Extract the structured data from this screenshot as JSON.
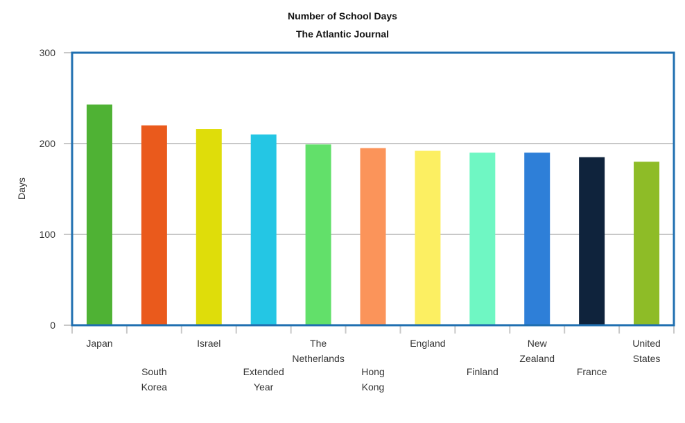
{
  "chart_data": {
    "type": "bar",
    "title": "Number of School Days",
    "subtitle": "The Atlantic Journal",
    "xlabel": "",
    "ylabel": "Days",
    "ylim": [
      0,
      300
    ],
    "yticks": [
      0,
      100,
      200,
      300
    ],
    "grid": true,
    "legend": "none",
    "categories": [
      "Japan",
      "South Korea",
      "Israel",
      "Extended Year",
      "The Netherlands",
      "Hong Kong",
      "England",
      "Finland",
      "New Zealand",
      "France",
      "United States"
    ],
    "category_label_lines": [
      [
        "Japan"
      ],
      [
        "South",
        "Korea"
      ],
      [
        "Israel"
      ],
      [
        "Extended",
        "Year"
      ],
      [
        "The",
        "Netherlands"
      ],
      [
        "Hong",
        "Kong"
      ],
      [
        "England"
      ],
      [
        "Finland"
      ],
      [
        "New",
        "Zealand"
      ],
      [
        "France"
      ],
      [
        "United",
        "States"
      ]
    ],
    "label_row": [
      0,
      1,
      0,
      1,
      0,
      1,
      0,
      1,
      0,
      1,
      0
    ],
    "values": [
      243,
      220,
      216,
      210,
      199,
      195,
      192,
      190,
      190,
      185,
      180
    ],
    "colors": [
      "#4fb234",
      "#ea5a1c",
      "#dfdd0a",
      "#24c6e4",
      "#62e06a",
      "#fb945a",
      "#fcef62",
      "#6ff7c3",
      "#2e7fd8",
      "#0f233c",
      "#8ebc27"
    ],
    "frame_color": "#1f6fb0",
    "grid_color": "#c8c8c8"
  }
}
